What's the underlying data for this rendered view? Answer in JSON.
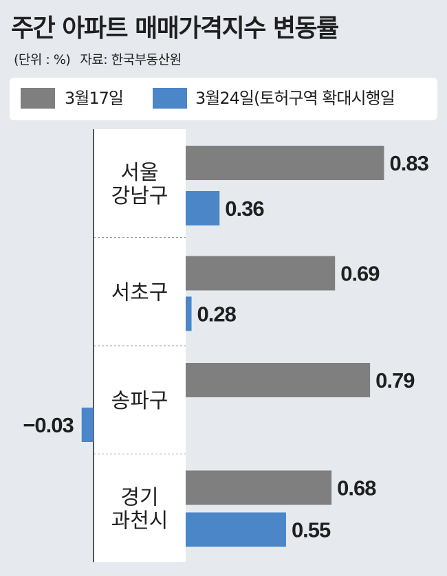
{
  "title": "주간 아파트 매매가격지수 변동률",
  "unit": "(단위 : %)",
  "source": "자료: 한국부동산원",
  "colors": {
    "series1": "#7f7f7f",
    "series2": "#4a86c8",
    "background": "#e6eaee",
    "panel": "#ffffff"
  },
  "chart_data": {
    "type": "bar",
    "orientation": "horizontal",
    "categories": [
      [
        "서울",
        "강남구"
      ],
      [
        "서초구"
      ],
      [
        "송파구"
      ],
      [
        "경기",
        "과천시"
      ]
    ],
    "series": [
      {
        "name": "3월17일",
        "values": [
          0.83,
          0.69,
          0.79,
          0.68
        ],
        "labels": [
          "0.83",
          "0.69",
          "0.79",
          "0.68"
        ]
      },
      {
        "name": "3월24일(토허구역 확대시행일",
        "values": [
          0.36,
          0.28,
          -0.03,
          0.55
        ],
        "labels": [
          "0.36",
          "0.28",
          "−0.03",
          "0.55"
        ]
      }
    ],
    "legend_position": "top",
    "grid": false
  }
}
